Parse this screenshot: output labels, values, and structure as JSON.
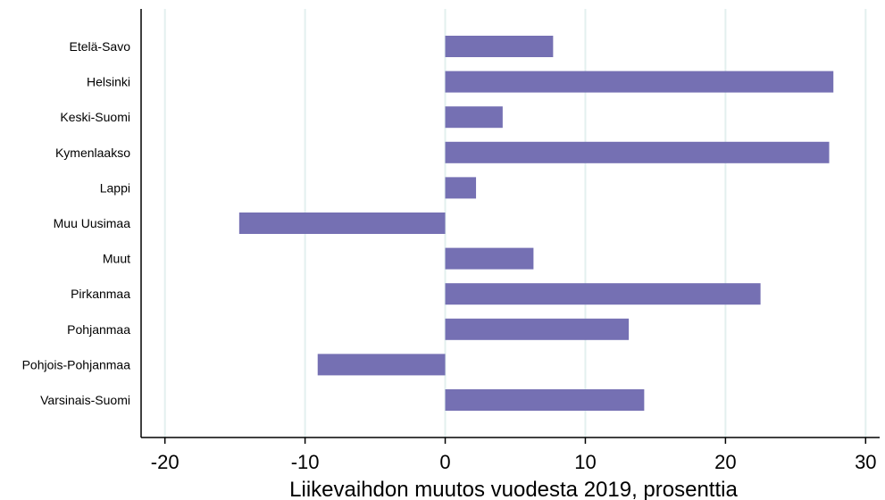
{
  "chart_data": {
    "type": "bar",
    "orientation": "horizontal",
    "title": "",
    "xlabel": "Liikevaihdon muutos vuodesta 2019, prosenttia",
    "ylabel": "",
    "categories": [
      "Etelä-Savo",
      "Helsinki",
      "Keski-Suomi",
      "Kymenlaakso",
      "Lappi",
      "Muu Uusimaa",
      "Muut",
      "Pirkanmaa",
      "Pohjanmaa",
      "Pohjois-Pohjanmaa",
      "Varsinais-Suomi"
    ],
    "values": [
      7.7,
      27.7,
      4.1,
      27.4,
      2.2,
      -14.7,
      6.3,
      22.5,
      13.1,
      -9.1,
      14.2
    ],
    "xlim": [
      -21.7,
      31
    ],
    "xticks": [
      -20,
      -10,
      0,
      10,
      20,
      30
    ],
    "grid": true,
    "bar_color": "#7570b3",
    "grid_color": "#e3f0ef"
  }
}
